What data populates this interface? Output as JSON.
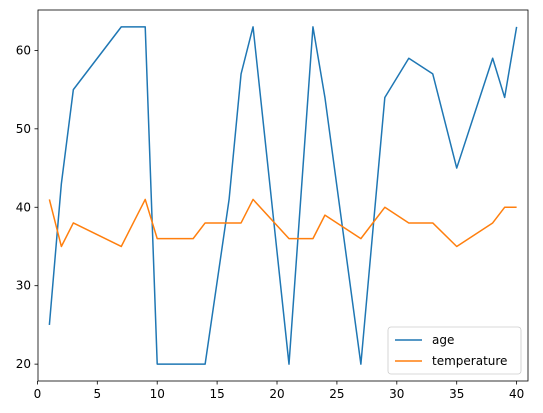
{
  "chart_data": {
    "type": "line",
    "title": "",
    "xlabel": "",
    "ylabel": "",
    "xlim": [
      0.05,
      40.95
    ],
    "ylim": [
      17.85,
      65.15
    ],
    "xticks": [
      0,
      5,
      10,
      15,
      20,
      25,
      30,
      35,
      40
    ],
    "yticks": [
      20,
      30,
      40,
      50,
      60
    ],
    "grid": false,
    "legend": {
      "placement": "lower right"
    },
    "x": [
      1,
      2,
      3,
      7,
      8,
      9,
      10,
      13,
      14,
      16,
      17,
      18,
      21,
      23,
      24,
      27,
      29,
      31,
      33,
      35,
      38,
      39,
      40
    ],
    "series": [
      {
        "name": "age",
        "color": "#1f77b4",
        "values": [
          25,
          43,
          55,
          63,
          63,
          63,
          20,
          20,
          20,
          41,
          57,
          63,
          20,
          63,
          54,
          20,
          54,
          59,
          57,
          45,
          59,
          54,
          63
        ]
      },
      {
        "name": "temperature",
        "color": "#ff7f0e",
        "values": [
          41,
          35,
          38,
          35,
          38,
          41,
          36,
          36,
          38,
          38,
          38,
          41,
          36,
          36,
          39,
          36,
          40,
          38,
          38,
          35,
          38,
          40,
          40
        ]
      }
    ]
  }
}
